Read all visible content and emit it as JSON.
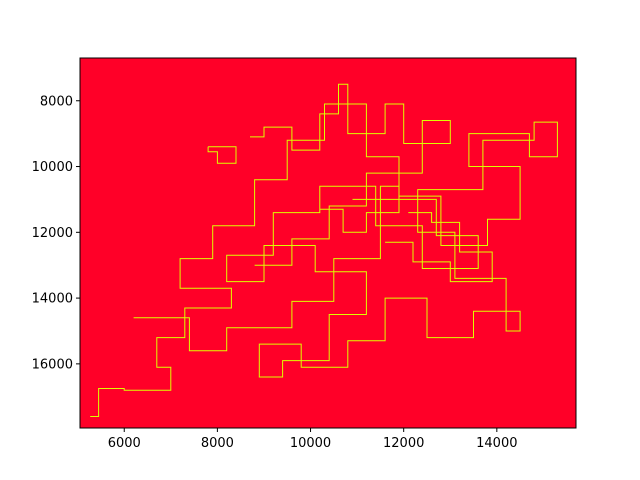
{
  "chart_data": {
    "type": "line",
    "title": "",
    "xlabel": "",
    "ylabel": "",
    "xlim": [
      5050,
      15700
    ],
    "ylim": [
      17950,
      6700
    ],
    "y_inverted": true,
    "grid": false,
    "legend": "none",
    "background_color": "#ff0028",
    "line_color": "#ddff00",
    "x_ticks": [
      6000,
      8000,
      10000,
      12000,
      14000
    ],
    "y_ticks": [
      8000,
      10000,
      12000,
      14000,
      16000
    ],
    "x_tick_labels": [
      "6000",
      "8000",
      "10000",
      "12000",
      "14000"
    ],
    "y_tick_labels": [
      "8000",
      "10000",
      "12000",
      "14000",
      "16000"
    ],
    "series": [
      {
        "values": [
          [
            5270,
            17600
          ],
          [
            5450,
            17600
          ],
          [
            5450,
            16750
          ],
          [
            6000,
            16750
          ],
          [
            6000,
            16800
          ],
          [
            7000,
            16800
          ],
          [
            7000,
            16100
          ],
          [
            6700,
            16100
          ],
          [
            6700,
            15200
          ],
          [
            7300,
            15200
          ],
          [
            7300,
            14300
          ],
          [
            8300,
            14300
          ],
          [
            8300,
            13700
          ],
          [
            7200,
            13700
          ],
          [
            7200,
            12800
          ],
          [
            7900,
            12800
          ],
          [
            7900,
            11800
          ],
          [
            8800,
            11800
          ],
          [
            8800,
            10400
          ],
          [
            9500,
            10400
          ],
          [
            9500,
            9200
          ],
          [
            10300,
            9200
          ],
          [
            10300,
            8100
          ],
          [
            11200,
            8100
          ],
          [
            11200,
            9700
          ],
          [
            11900,
            9700
          ],
          [
            11900,
            10900
          ],
          [
            12800,
            10900
          ],
          [
            12800,
            12400
          ],
          [
            13800,
            12400
          ],
          [
            13800,
            11600
          ],
          [
            14500,
            11600
          ],
          [
            14500,
            10000
          ],
          [
            13400,
            10000
          ],
          [
            13400,
            9000
          ],
          [
            14700,
            9000
          ],
          [
            14700,
            9700
          ],
          [
            15300,
            9700
          ],
          [
            15300,
            8650
          ],
          [
            14800,
            8650
          ],
          [
            14800,
            9200
          ],
          [
            13700,
            9200
          ],
          [
            13700,
            10700
          ],
          [
            12300,
            10700
          ],
          [
            12300,
            12000
          ],
          [
            13100,
            12000
          ],
          [
            13100,
            13400
          ],
          [
            14200,
            13400
          ],
          [
            14200,
            15000
          ],
          [
            14500,
            15000
          ],
          [
            14500,
            14400
          ],
          [
            13500,
            14400
          ],
          [
            13500,
            15200
          ],
          [
            12500,
            15200
          ],
          [
            12500,
            14000
          ],
          [
            11600,
            14000
          ],
          [
            11600,
            15300
          ],
          [
            10800,
            15300
          ],
          [
            10800,
            16100
          ],
          [
            9800,
            16100
          ],
          [
            9800,
            15400
          ],
          [
            8900,
            15400
          ],
          [
            8900,
            16400
          ],
          [
            9400,
            16400
          ],
          [
            9400,
            15900
          ],
          [
            10400,
            15900
          ],
          [
            10400,
            14500
          ],
          [
            11200,
            14500
          ],
          [
            11200,
            13200
          ],
          [
            10100,
            13200
          ],
          [
            10100,
            12400
          ],
          [
            9000,
            12400
          ],
          [
            9000,
            13500
          ],
          [
            8200,
            13500
          ],
          [
            8200,
            12700
          ],
          [
            9200,
            12700
          ],
          [
            9200,
            11400
          ],
          [
            10200,
            11400
          ],
          [
            10200,
            10600
          ],
          [
            11400,
            10600
          ],
          [
            11400,
            11800
          ],
          [
            12400,
            11800
          ],
          [
            12400,
            13100
          ],
          [
            13600,
            13100
          ],
          [
            13600,
            12100
          ],
          [
            12700,
            12100
          ],
          [
            12700,
            11000
          ],
          [
            11500,
            11000
          ],
          [
            11500,
            12800
          ],
          [
            10500,
            12800
          ],
          [
            10500,
            14100
          ],
          [
            9600,
            14100
          ],
          [
            9600,
            14900
          ],
          [
            8200,
            14900
          ],
          [
            8200,
            15600
          ],
          [
            7400,
            15600
          ],
          [
            7400,
            14600
          ],
          [
            6200,
            14600
          ]
        ]
      },
      {
        "values": [
          [
            7800,
            9400
          ],
          [
            8400,
            9400
          ],
          [
            8400,
            9900
          ],
          [
            8000,
            9900
          ],
          [
            8000,
            9550
          ],
          [
            7800,
            9550
          ],
          [
            7800,
            9400
          ]
        ]
      },
      {
        "values": [
          [
            8700,
            9100
          ],
          [
            9000,
            9100
          ],
          [
            9000,
            8800
          ],
          [
            9600,
            8800
          ],
          [
            9600,
            9500
          ],
          [
            10200,
            9500
          ],
          [
            10200,
            8400
          ],
          [
            10600,
            8400
          ],
          [
            10600,
            7500
          ],
          [
            10800,
            7500
          ],
          [
            10800,
            9000
          ],
          [
            11600,
            9000
          ],
          [
            11600,
            8100
          ],
          [
            12000,
            8100
          ],
          [
            12000,
            9300
          ],
          [
            13000,
            9300
          ],
          [
            13000,
            8600
          ],
          [
            12400,
            8600
          ],
          [
            12400,
            10200
          ],
          [
            11200,
            10200
          ],
          [
            11200,
            11200
          ],
          [
            10400,
            11200
          ],
          [
            10400,
            12200
          ],
          [
            9600,
            12200
          ],
          [
            9600,
            13000
          ],
          [
            8800,
            13000
          ]
        ]
      },
      {
        "values": [
          [
            10900,
            11000
          ],
          [
            11500,
            11000
          ],
          [
            11500,
            10600
          ],
          [
            11900,
            10600
          ],
          [
            11900,
            11400
          ],
          [
            11200,
            11400
          ],
          [
            11200,
            12000
          ],
          [
            10700,
            12000
          ],
          [
            10700,
            11300
          ],
          [
            10200,
            11300
          ]
        ]
      },
      {
        "values": [
          [
            12100,
            11400
          ],
          [
            12600,
            11400
          ],
          [
            12600,
            11700
          ],
          [
            13200,
            11700
          ],
          [
            13200,
            12600
          ],
          [
            13900,
            12600
          ],
          [
            13900,
            13500
          ],
          [
            13000,
            13500
          ],
          [
            13000,
            12900
          ],
          [
            12200,
            12900
          ],
          [
            12200,
            12300
          ],
          [
            11600,
            12300
          ]
        ]
      }
    ]
  }
}
